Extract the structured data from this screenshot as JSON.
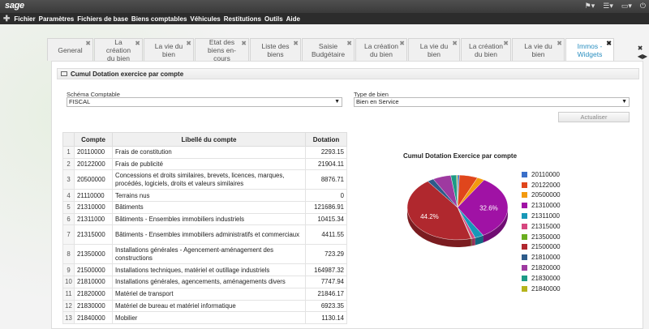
{
  "app": {
    "logo": "sage"
  },
  "menu": [
    "Fichier",
    "Paramètres",
    "Fichiers de base",
    "Biens comptables",
    "Véhicules",
    "Restitutions",
    "Outils",
    "Aide"
  ],
  "tabs": [
    {
      "label": "General",
      "active": false
    },
    {
      "label": "La création du bien",
      "active": false
    },
    {
      "label": "La vie du bien",
      "active": false
    },
    {
      "label": "Etat des biens en-cours",
      "active": false
    },
    {
      "label": "Liste des biens",
      "active": false
    },
    {
      "label": "Saisie Budgétaire",
      "active": false
    },
    {
      "label": "La création du bien",
      "active": false
    },
    {
      "label": "La vie du bien",
      "active": false
    },
    {
      "label": "La création du bien",
      "active": false
    },
    {
      "label": "La vie du bien",
      "active": false
    },
    {
      "label": "Immos - Widgets",
      "active": true
    }
  ],
  "panel": {
    "title": "Cumul Dotation exercice par compte",
    "schema_label": "Schéma Comptable",
    "schema_value": "FISCAL",
    "type_label": "Type de bien",
    "type_value": "Bien en Service",
    "refresh_label": "Actualiser"
  },
  "table": {
    "headers": [
      "",
      "Compte",
      "Libellé du compte",
      "Dotation"
    ],
    "rows": [
      {
        "n": "1",
        "compte": "20110000",
        "libelle": "Frais de constitution",
        "dotation": "2293.15"
      },
      {
        "n": "2",
        "compte": "20122000",
        "libelle": "Frais de publicité",
        "dotation": "21904.11"
      },
      {
        "n": "3",
        "compte": "20500000",
        "libelle": "Concessions et droits similaires, brevets, licences, marques, procédés, logiciels, droits et valeurs similaires",
        "dotation": "8876.71"
      },
      {
        "n": "4",
        "compte": "21110000",
        "libelle": "Terrains nus",
        "dotation": "0"
      },
      {
        "n": "5",
        "compte": "21310000",
        "libelle": "Bâtiments",
        "dotation": "121686.91"
      },
      {
        "n": "6",
        "compte": "21311000",
        "libelle": "Bâtiments - Ensembles immobiliers industriels",
        "dotation": "10415.34"
      },
      {
        "n": "7",
        "compte": "21315000",
        "libelle": "Bâtiments - Ensembles immobiliers administratifs et commerciaux",
        "dotation": "4411.55"
      },
      {
        "n": "8",
        "compte": "21350000",
        "libelle": "Installations générales - Agencement-aménagement des constructions",
        "dotation": "723.29"
      },
      {
        "n": "9",
        "compte": "21500000",
        "libelle": "Installations techniques, matériel et outillage industriels",
        "dotation": "164987.32"
      },
      {
        "n": "10",
        "compte": "21810000",
        "libelle": "Installations générales, agencements, aménagements divers",
        "dotation": "7747.94"
      },
      {
        "n": "11",
        "compte": "21820000",
        "libelle": "Matériel de transport",
        "dotation": "21846.17"
      },
      {
        "n": "12",
        "compte": "21830000",
        "libelle": "Matériel de bureau et matériel informatique",
        "dotation": "6923.35"
      },
      {
        "n": "13",
        "compte": "21840000",
        "libelle": "Mobilier",
        "dotation": "1130.14"
      }
    ]
  },
  "chart_data": {
    "type": "pie",
    "title": "Cumul Dotation Exercice par compte",
    "labels": [
      "20110000",
      "20122000",
      "20500000",
      "21310000",
      "21311000",
      "21315000",
      "21350000",
      "21500000",
      "21810000",
      "21820000",
      "21830000",
      "21840000"
    ],
    "values": [
      2293.15,
      21904.11,
      8876.71,
      121686.91,
      10415.34,
      4411.55,
      723.29,
      164987.32,
      7747.94,
      21846.17,
      6923.35,
      1130.14
    ],
    "colors": [
      "#3a6fc9",
      "#e0461c",
      "#f39a0f",
      "#a012a5",
      "#1798b8",
      "#d6477f",
      "#6aae1f",
      "#b0282e",
      "#2d5b8a",
      "#9e3aa0",
      "#1d9a86",
      "#b5b41c"
    ],
    "percent_labels": [
      {
        "label": "32.6%",
        "series": "21310000"
      },
      {
        "label": "44.2%",
        "series": "21500000"
      }
    ]
  }
}
